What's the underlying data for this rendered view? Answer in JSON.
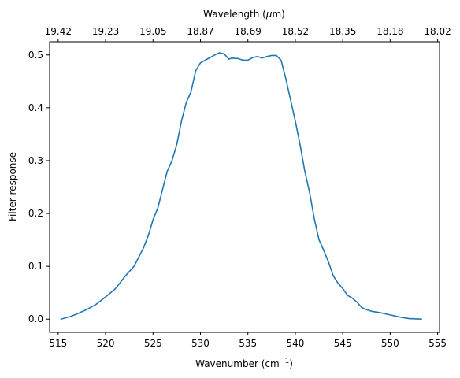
{
  "chart_data": {
    "type": "line",
    "xlabel": "Wavenumber (cm",
    "xlabel_sup": "−1",
    "xlabel_end": ")",
    "ylabel": "Filter response",
    "top_xlabel": "Wavelength (",
    "top_xlabel_mu": "μ",
    "top_xlabel_end": "m)",
    "xlim": [
      514.1,
      555.2
    ],
    "ylim": [
      -0.025,
      0.525
    ],
    "xticks": [
      515,
      520,
      525,
      530,
      535,
      540,
      545,
      550,
      555
    ],
    "yticks": [
      0.0,
      0.1,
      0.2,
      0.3,
      0.4,
      0.5
    ],
    "ytick_labels": [
      "0.0",
      "0.1",
      "0.2",
      "0.3",
      "0.4",
      "0.5"
    ],
    "top_ticks": [
      "19.42",
      "19.23",
      "19.05",
      "18.87",
      "18.69",
      "18.52",
      "18.35",
      "18.18",
      "18.02"
    ],
    "grid": false,
    "series": [
      {
        "color": "#1f77b4",
        "x": [
          515.3,
          516.3,
          517.0,
          518.0,
          519.0,
          520.0,
          521.0,
          521.5,
          522.0,
          523.0,
          524.0,
          524.5,
          525.0,
          525.5,
          526.0,
          526.5,
          527.0,
          527.5,
          528.0,
          528.5,
          529.0,
          529.5,
          530.0,
          530.3,
          531.0,
          531.5,
          532.0,
          532.5,
          533.0,
          533.3,
          534.0,
          534.5,
          535.0,
          535.5,
          536.0,
          536.5,
          537.0,
          537.5,
          538.0,
          538.5,
          539.0,
          539.5,
          540.0,
          540.5,
          541.0,
          541.5,
          542.0,
          542.5,
          543.0,
          543.5,
          544.0,
          544.5,
          545.0,
          545.5,
          546.0,
          546.5,
          547.0,
          547.5,
          548.0,
          549.0,
          550.0,
          551.0,
          552.0,
          553.3
        ],
        "y": [
          0.0,
          0.005,
          0.01,
          0.018,
          0.028,
          0.042,
          0.057,
          0.068,
          0.08,
          0.1,
          0.135,
          0.158,
          0.188,
          0.21,
          0.245,
          0.28,
          0.3,
          0.33,
          0.375,
          0.41,
          0.43,
          0.47,
          0.485,
          0.488,
          0.495,
          0.5,
          0.504,
          0.502,
          0.492,
          0.494,
          0.493,
          0.49,
          0.49,
          0.495,
          0.497,
          0.494,
          0.497,
          0.499,
          0.499,
          0.49,
          0.455,
          0.415,
          0.375,
          0.33,
          0.28,
          0.24,
          0.19,
          0.15,
          0.13,
          0.108,
          0.082,
          0.068,
          0.058,
          0.045,
          0.04,
          0.032,
          0.022,
          0.018,
          0.015,
          0.012,
          0.008,
          0.004,
          0.001,
          0.0
        ]
      }
    ]
  }
}
